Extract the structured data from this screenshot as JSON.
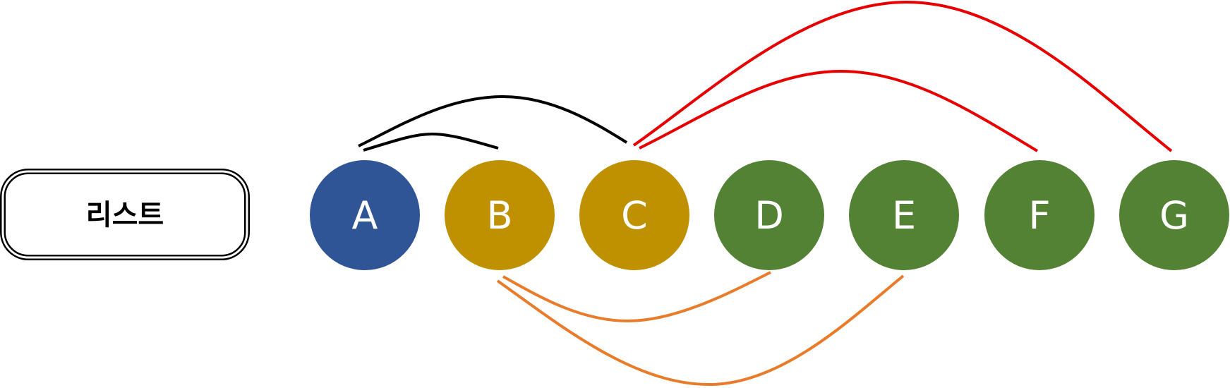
{
  "list_label": "리스트",
  "nodes": [
    {
      "id": "A",
      "label": "A",
      "color": "#2f5597"
    },
    {
      "id": "B",
      "label": "B",
      "color": "#bf9000"
    },
    {
      "id": "C",
      "label": "C",
      "color": "#bf9000"
    },
    {
      "id": "D",
      "label": "D",
      "color": "#548235"
    },
    {
      "id": "E",
      "label": "E",
      "color": "#548235"
    },
    {
      "id": "F",
      "label": "F",
      "color": "#548235"
    },
    {
      "id": "G",
      "label": "G",
      "color": "#548235"
    }
  ],
  "edges": [
    {
      "from": "A",
      "to": "B",
      "color": "#000000"
    },
    {
      "from": "A",
      "to": "C",
      "color": "#000000"
    },
    {
      "from": "B",
      "to": "D",
      "color": "#e97c2b"
    },
    {
      "from": "B",
      "to": "E",
      "color": "#e97c2b"
    },
    {
      "from": "C",
      "to": "F",
      "color": "#e60000"
    },
    {
      "from": "C",
      "to": "G",
      "color": "#e60000"
    }
  ]
}
